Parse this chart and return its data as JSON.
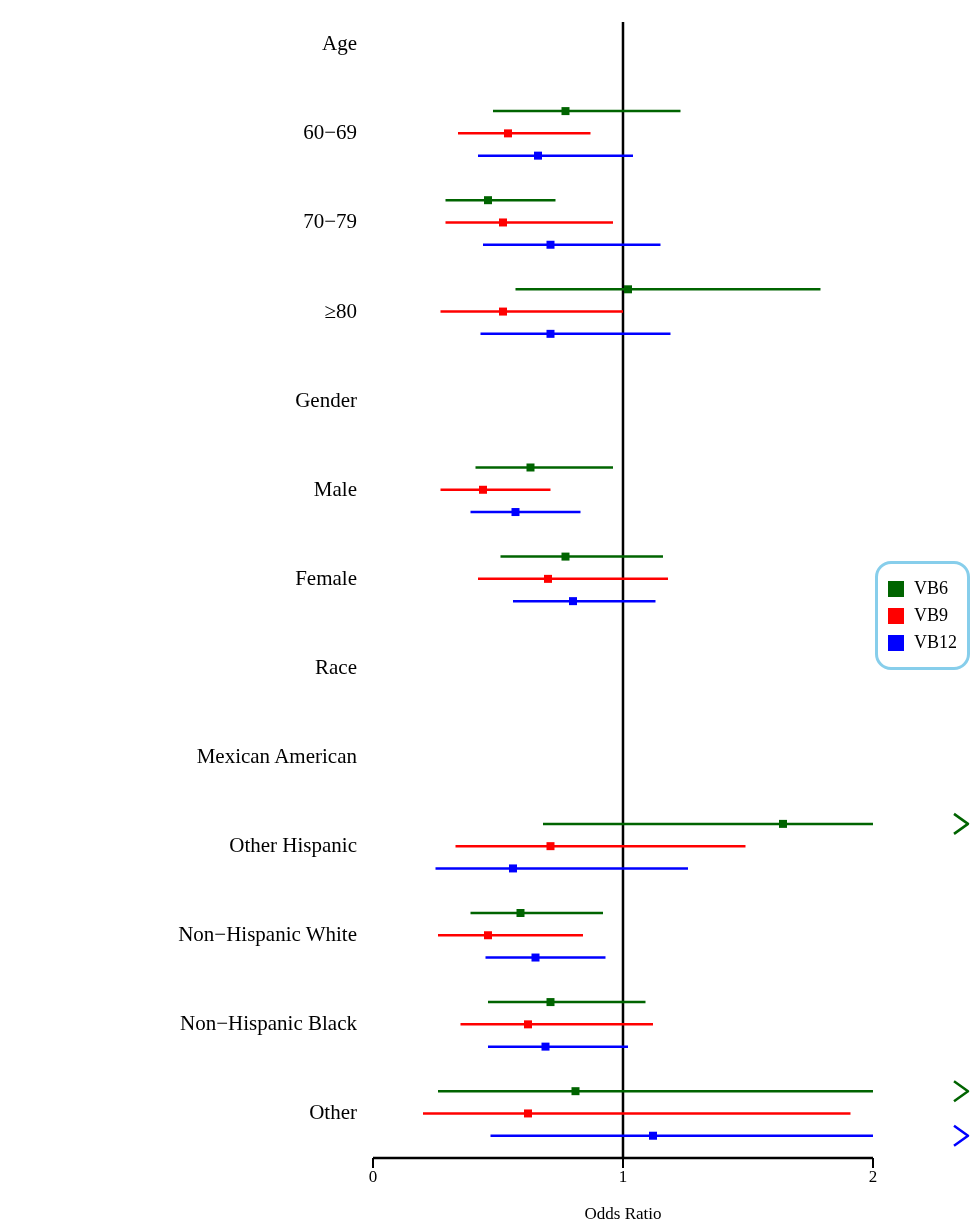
{
  "chart_data": {
    "type": "scatter",
    "orientation": "horizontal",
    "xlabel": "Odds Ratio",
    "categories": [
      "Age",
      "60−69",
      "70−79",
      "≥80",
      "Gender",
      "Male",
      "Female",
      "Race",
      "Mexican American",
      "Other Hispanic",
      "Non−Hispanic White",
      "Non−Hispanic Black",
      "Other"
    ],
    "xlim": [
      0,
      2
    ],
    "xticks": [
      0,
      1,
      2
    ],
    "marker": "square",
    "legend": "right",
    "grid": false,
    "ref_lines": [
      {
        "axis": "x",
        "value": 1,
        "color": "#000000"
      }
    ],
    "series": [
      {
        "name": "VB6",
        "color": "#006400",
        "values": [
          null,
          0.77,
          0.46,
          1.02,
          null,
          0.63,
          0.77,
          null,
          null,
          1.64,
          0.59,
          0.71,
          0.81
        ],
        "errors": [
          null,
          [
            0.48,
            1.23
          ],
          [
            0.29,
            0.73
          ],
          [
            0.57,
            1.79
          ],
          null,
          [
            0.41,
            0.96
          ],
          [
            0.51,
            1.16
          ],
          null,
          null,
          [
            0.68,
            2
          ],
          [
            0.39,
            0.92
          ],
          [
            0.46,
            1.09
          ],
          [
            0.26,
            2
          ]
        ]
      },
      {
        "name": "VB9",
        "color": "#ff0000",
        "values": [
          null,
          0.54,
          0.52,
          0.52,
          null,
          0.44,
          0.7,
          null,
          null,
          0.71,
          0.46,
          0.62,
          0.62
        ],
        "errors": [
          null,
          [
            0.34,
            0.87
          ],
          [
            0.29,
            0.96
          ],
          [
            0.27,
            1.0
          ],
          null,
          [
            0.27,
            0.71
          ],
          [
            0.42,
            1.18
          ],
          null,
          null,
          [
            0.33,
            1.49
          ],
          [
            0.26,
            0.84
          ],
          [
            0.35,
            1.12
          ],
          [
            0.2,
            1.91
          ]
        ]
      },
      {
        "name": "VB12",
        "color": "#0000ff",
        "values": [
          null,
          0.66,
          0.71,
          0.71,
          null,
          0.57,
          0.8,
          null,
          null,
          0.56,
          0.65,
          0.69,
          1.12
        ],
        "errors": [
          null,
          [
            0.42,
            1.04
          ],
          [
            0.44,
            1.15
          ],
          [
            0.43,
            1.19
          ],
          null,
          [
            0.39,
            0.83
          ],
          [
            0.56,
            1.13
          ],
          null,
          null,
          [
            0.25,
            1.26
          ],
          [
            0.45,
            0.93
          ],
          [
            0.46,
            1.02
          ],
          [
            0.47,
            2
          ]
        ]
      }
    ]
  }
}
